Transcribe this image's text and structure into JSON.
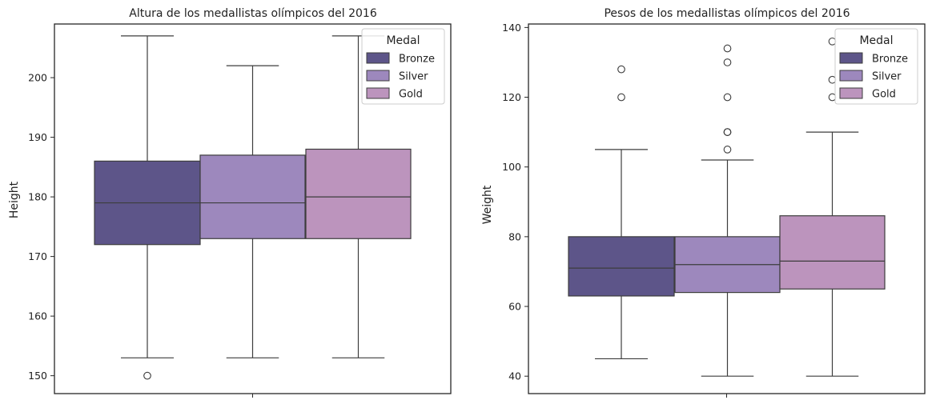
{
  "chart_data": [
    {
      "type": "box",
      "title": "Altura de los medallistas olímpicos del 2016",
      "ylabel": "Height",
      "xlabel": "",
      "ylim": [
        147,
        209
      ],
      "yticks": [
        150,
        160,
        170,
        180,
        190,
        200
      ],
      "legend": {
        "title": "Medal",
        "placement": "top-right"
      },
      "grid": false,
      "series": [
        {
          "name": "Bronze",
          "color": "#5d5589",
          "whisker_low": 153,
          "q1": 172,
          "median": 179,
          "q3": 186,
          "whisker_high": 207,
          "outliers": [
            150
          ]
        },
        {
          "name": "Silver",
          "color": "#9d88bd",
          "whisker_low": 153,
          "q1": 173,
          "median": 179,
          "q3": 187,
          "whisker_high": 202,
          "outliers": []
        },
        {
          "name": "Gold",
          "color": "#bc94bd",
          "whisker_low": 153,
          "q1": 173,
          "median": 180,
          "q3": 188,
          "whisker_high": 207,
          "outliers": []
        }
      ]
    },
    {
      "type": "box",
      "title": "Pesos de los medallistas olímpicos del 2016",
      "ylabel": "Weight",
      "xlabel": "",
      "ylim": [
        35,
        141
      ],
      "yticks": [
        40,
        60,
        80,
        100,
        120,
        140
      ],
      "legend": {
        "title": "Medal",
        "placement": "top-right"
      },
      "grid": false,
      "series": [
        {
          "name": "Bronze",
          "color": "#5d5589",
          "whisker_low": 45,
          "q1": 63,
          "median": 71,
          "q3": 80,
          "whisker_high": 105,
          "outliers": [
            120,
            128
          ]
        },
        {
          "name": "Silver",
          "color": "#9d88bd",
          "whisker_low": 40,
          "q1": 64,
          "median": 72,
          "q3": 80,
          "whisker_high": 102,
          "outliers": [
            105,
            110,
            110,
            120,
            130,
            134
          ]
        },
        {
          "name": "Gold",
          "color": "#bc94bd",
          "whisker_low": 40,
          "q1": 65,
          "median": 73,
          "q3": 86,
          "whisker_high": 110,
          "outliers": [
            120,
            125,
            136
          ]
        }
      ]
    }
  ]
}
